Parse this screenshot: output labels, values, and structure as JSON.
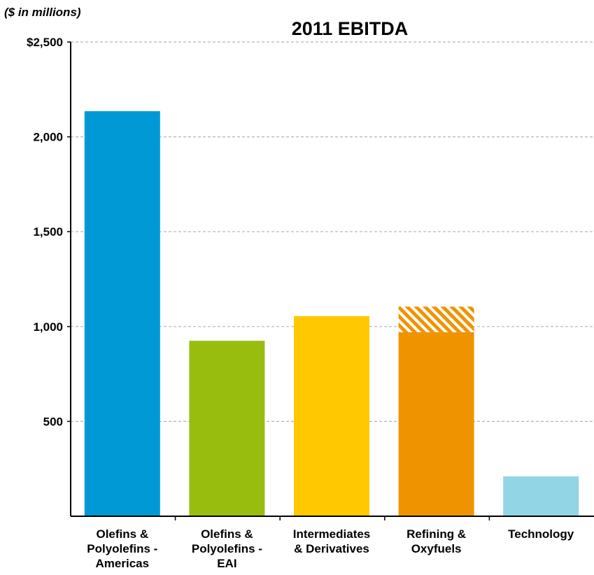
{
  "unit_label": "($ in millions)",
  "chart_data": {
    "type": "bar",
    "title": "2011 EBITDA",
    "xlabel": "",
    "ylabel": "",
    "ylim": [
      0,
      2500
    ],
    "yticks": [
      {
        "value": 500,
        "label": "500"
      },
      {
        "value": 1000,
        "label": "1,000"
      },
      {
        "value": 1500,
        "label": "1,500"
      },
      {
        "value": 2000,
        "label": "2,000"
      },
      {
        "value": 2500,
        "label": "$2,500"
      }
    ],
    "grid": true,
    "categories": [
      [
        "Olefins &",
        "Polyolefins -",
        "Americas"
      ],
      [
        "Olefins &",
        "Polyolefins -",
        "EAI"
      ],
      [
        "Intermediates",
        "& Derivatives"
      ],
      [
        "Refining &",
        "Oxyfuels"
      ],
      [
        "Technology"
      ]
    ],
    "values": [
      2135,
      925,
      1055,
      1105,
      210
    ],
    "solid_values": [
      2135,
      925,
      1055,
      970,
      210
    ],
    "hatched_values": [
      0,
      0,
      0,
      135,
      0
    ],
    "colors": [
      "#0099d5",
      "#99bd0f",
      "#ffc800",
      "#f09300",
      "#92d5e5"
    ],
    "hatch_colors": [
      "#f09300",
      "#ffffff"
    ]
  }
}
